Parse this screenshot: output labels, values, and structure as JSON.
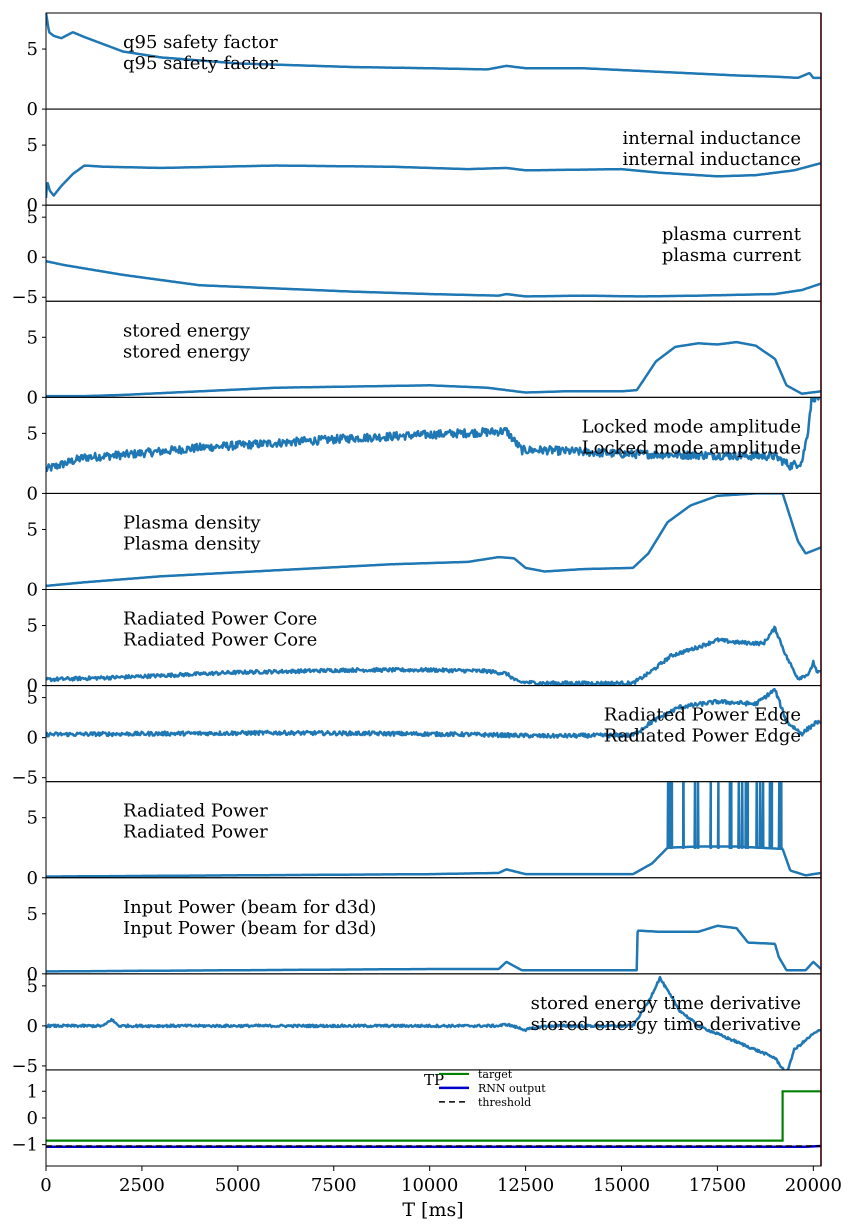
{
  "chart_data": {
    "type": "line",
    "xlabel": "T [ms]",
    "xlim": [
      0,
      20200
    ],
    "x_ticks": [
      0,
      2500,
      5000,
      7500,
      10000,
      12500,
      15000,
      17500,
      20000
    ],
    "x_tick_labels": [
      "0",
      "2500",
      "5000",
      "7500",
      "10000",
      "12500",
      "15000",
      "17500",
      "20000"
    ],
    "line_color": "#1f77b4",
    "end_marker_color": "#8b0000",
    "panels": [
      {
        "label": "q95 safety factor",
        "label_pos": "left",
        "ylim": [
          0,
          8
        ],
        "yticks": [
          0,
          5
        ],
        "ytick_labels": [
          "0",
          "5"
        ],
        "noise": 0,
        "points": [
          [
            0,
            8
          ],
          [
            80,
            6.4
          ],
          [
            200,
            6.1
          ],
          [
            400,
            5.9
          ],
          [
            700,
            6.4
          ],
          [
            1000,
            6.0
          ],
          [
            1500,
            5.4
          ],
          [
            2000,
            4.8
          ],
          [
            3000,
            4.3
          ],
          [
            5000,
            3.8
          ],
          [
            8000,
            3.5
          ],
          [
            10000,
            3.4
          ],
          [
            11500,
            3.3
          ],
          [
            12000,
            3.6
          ],
          [
            12500,
            3.4
          ],
          [
            14000,
            3.4
          ],
          [
            16000,
            3.1
          ],
          [
            18000,
            2.8
          ],
          [
            19000,
            2.7
          ],
          [
            19600,
            2.6
          ],
          [
            19900,
            3.0
          ],
          [
            20000,
            2.6
          ],
          [
            20200,
            2.6
          ]
        ]
      },
      {
        "label": "internal inductance",
        "label_pos": "right",
        "ylim": [
          0,
          8
        ],
        "yticks": [
          0,
          5
        ],
        "ytick_labels": [
          "0",
          "5"
        ],
        "noise": 0,
        "points": [
          [
            0,
            0.6
          ],
          [
            30,
            2.0
          ],
          [
            100,
            1.2
          ],
          [
            200,
            0.8
          ],
          [
            400,
            1.6
          ],
          [
            700,
            2.6
          ],
          [
            1000,
            3.3
          ],
          [
            1500,
            3.2
          ],
          [
            3000,
            3.1
          ],
          [
            6000,
            3.3
          ],
          [
            9000,
            3.2
          ],
          [
            11000,
            3.0
          ],
          [
            12000,
            3.1
          ],
          [
            12500,
            2.9
          ],
          [
            15000,
            3.0
          ],
          [
            16000,
            2.7
          ],
          [
            17500,
            2.4
          ],
          [
            18500,
            2.5
          ],
          [
            19500,
            2.9
          ],
          [
            20200,
            3.5
          ]
        ]
      },
      {
        "label": "plasma current",
        "label_pos": "right",
        "ylim": [
          -5.5,
          6.5
        ],
        "yticks": [
          -5,
          0,
          5
        ],
        "ytick_labels": [
          "−5",
          "0",
          "5"
        ],
        "noise": 0,
        "points": [
          [
            0,
            -0.5
          ],
          [
            500,
            -1.0
          ],
          [
            2000,
            -2.2
          ],
          [
            4000,
            -3.5
          ],
          [
            6000,
            -3.9
          ],
          [
            8000,
            -4.3
          ],
          [
            10000,
            -4.6
          ],
          [
            11800,
            -4.8
          ],
          [
            12000,
            -4.6
          ],
          [
            12500,
            -4.9
          ],
          [
            14000,
            -4.8
          ],
          [
            15500,
            -4.9
          ],
          [
            17000,
            -4.8
          ],
          [
            19000,
            -4.6
          ],
          [
            19700,
            -4.1
          ],
          [
            20200,
            -3.3
          ]
        ]
      },
      {
        "label": "stored energy",
        "label_pos": "left",
        "ylim": [
          0,
          8
        ],
        "yticks": [
          0,
          5
        ],
        "ytick_labels": [
          "0",
          "5"
        ],
        "noise": 0,
        "points": [
          [
            0,
            0.1
          ],
          [
            1000,
            0.1
          ],
          [
            2000,
            0.2
          ],
          [
            4000,
            0.5
          ],
          [
            6000,
            0.8
          ],
          [
            8000,
            0.9
          ],
          [
            10000,
            1.0
          ],
          [
            11500,
            0.8
          ],
          [
            12000,
            0.6
          ],
          [
            12500,
            0.4
          ],
          [
            13500,
            0.5
          ],
          [
            15000,
            0.5
          ],
          [
            15400,
            0.6
          ],
          [
            15900,
            3.0
          ],
          [
            16400,
            4.2
          ],
          [
            17000,
            4.5
          ],
          [
            17500,
            4.4
          ],
          [
            18000,
            4.6
          ],
          [
            18500,
            4.3
          ],
          [
            19000,
            3.2
          ],
          [
            19300,
            1.0
          ],
          [
            19700,
            0.3
          ],
          [
            20200,
            0.5
          ]
        ]
      },
      {
        "label": "Locked mode amplitude",
        "label_pos": "right",
        "ylim": [
          0,
          8
        ],
        "yticks": [
          0,
          5
        ],
        "ytick_labels": [
          "0",
          "5"
        ],
        "noise": 0.35,
        "points": [
          [
            0,
            2.0
          ],
          [
            500,
            2.5
          ],
          [
            1000,
            3.0
          ],
          [
            2000,
            3.2
          ],
          [
            4000,
            3.8
          ],
          [
            6000,
            4.2
          ],
          [
            8000,
            4.6
          ],
          [
            10000,
            4.9
          ],
          [
            11500,
            5.1
          ],
          [
            12000,
            5.2
          ],
          [
            12400,
            3.6
          ],
          [
            13000,
            3.6
          ],
          [
            15000,
            3.3
          ],
          [
            17000,
            3.2
          ],
          [
            19000,
            3.1
          ],
          [
            19400,
            2.3
          ],
          [
            19700,
            2.6
          ],
          [
            19850,
            5.0
          ],
          [
            19950,
            7.8
          ],
          [
            20000,
            8.0
          ]
        ]
      },
      {
        "label": "Plasma density",
        "label_pos": "left",
        "ylim": [
          0,
          8
        ],
        "yticks": [
          0,
          5
        ],
        "ytick_labels": [
          "0",
          "5"
        ],
        "noise": 0,
        "points": [
          [
            0,
            0.3
          ],
          [
            1000,
            0.6
          ],
          [
            3000,
            1.1
          ],
          [
            6000,
            1.6
          ],
          [
            9000,
            2.1
          ],
          [
            11000,
            2.3
          ],
          [
            11800,
            2.7
          ],
          [
            12200,
            2.6
          ],
          [
            12500,
            1.8
          ],
          [
            13000,
            1.5
          ],
          [
            14000,
            1.7
          ],
          [
            15300,
            1.8
          ],
          [
            15700,
            3.0
          ],
          [
            16200,
            5.6
          ],
          [
            16800,
            7.0
          ],
          [
            17500,
            7.8
          ],
          [
            18500,
            8.0
          ],
          [
            19200,
            8.0
          ],
          [
            19400,
            6.0
          ],
          [
            19600,
            4.0
          ],
          [
            19800,
            3.0
          ],
          [
            20200,
            3.5
          ]
        ]
      },
      {
        "label": "Radiated Power Core",
        "label_pos": "left",
        "ylim": [
          0,
          8
        ],
        "yticks": [
          0,
          5
        ],
        "ytick_labels": [
          "0",
          "5"
        ],
        "noise": 0.15,
        "points": [
          [
            0,
            0.5
          ],
          [
            2000,
            0.7
          ],
          [
            5000,
            1.1
          ],
          [
            8000,
            1.3
          ],
          [
            10000,
            1.3
          ],
          [
            11500,
            1.2
          ],
          [
            12000,
            1.0
          ],
          [
            12300,
            0.3
          ],
          [
            13000,
            0.2
          ],
          [
            15300,
            0.2
          ],
          [
            15700,
            1.0
          ],
          [
            16300,
            2.5
          ],
          [
            17000,
            3.2
          ],
          [
            17500,
            3.8
          ],
          [
            18000,
            3.6
          ],
          [
            18700,
            3.5
          ],
          [
            19000,
            4.8
          ],
          [
            19300,
            2.4
          ],
          [
            19600,
            0.6
          ],
          [
            19900,
            1.0
          ],
          [
            20000,
            2.0
          ],
          [
            20100,
            1.0
          ],
          [
            20200,
            1.2
          ]
        ]
      },
      {
        "label": "Radiated Power Edge",
        "label_pos": "right",
        "ylim": [
          -5.5,
          6.5
        ],
        "yticks": [
          -5,
          0,
          5
        ],
        "ytick_labels": [
          "−5",
          "0",
          "5"
        ],
        "noise": 0.25,
        "points": [
          [
            0,
            0.4
          ],
          [
            3000,
            0.5
          ],
          [
            6000,
            0.6
          ],
          [
            9000,
            0.5
          ],
          [
            11000,
            0.4
          ],
          [
            12000,
            0.3
          ],
          [
            13000,
            0.2
          ],
          [
            15300,
            0.3
          ],
          [
            15800,
            2.0
          ],
          [
            16500,
            3.8
          ],
          [
            17500,
            4.5
          ],
          [
            18500,
            4.2
          ],
          [
            19000,
            6.0
          ],
          [
            19300,
            2.0
          ],
          [
            19700,
            0.5
          ],
          [
            20100,
            2.0
          ],
          [
            20200,
            1.6
          ]
        ]
      },
      {
        "label": "Radiated Power",
        "label_pos": "left",
        "ylim": [
          0,
          8
        ],
        "yticks": [
          0,
          5
        ],
        "ytick_labels": [
          "0",
          "5"
        ],
        "noise": 0,
        "spikes": [
          [
            16200,
            19300,
            28,
            2.5,
            8.0
          ]
        ],
        "points": [
          [
            0,
            0.1
          ],
          [
            5000,
            0.2
          ],
          [
            10000,
            0.3
          ],
          [
            11800,
            0.4
          ],
          [
            12000,
            0.7
          ],
          [
            12500,
            0.3
          ],
          [
            15300,
            0.3
          ],
          [
            15800,
            1.2
          ],
          [
            16200,
            2.5
          ],
          [
            17000,
            2.6
          ],
          [
            18000,
            2.6
          ],
          [
            19200,
            2.4
          ],
          [
            19400,
            0.6
          ],
          [
            19800,
            0.2
          ],
          [
            20200,
            0.4
          ]
        ]
      },
      {
        "label": "Input Power (beam for d3d)",
        "label_pos": "left",
        "ylim": [
          0,
          8
        ],
        "yticks": [
          0,
          5
        ],
        "ytick_labels": [
          "0",
          "5"
        ],
        "noise": 0,
        "points": [
          [
            0,
            0.2
          ],
          [
            5000,
            0.3
          ],
          [
            10000,
            0.4
          ],
          [
            11800,
            0.4
          ],
          [
            12000,
            1.0
          ],
          [
            12400,
            0.3
          ],
          [
            15400,
            0.3
          ],
          [
            15420,
            3.6
          ],
          [
            16000,
            3.5
          ],
          [
            17000,
            3.5
          ],
          [
            17500,
            4.0
          ],
          [
            18000,
            3.8
          ],
          [
            18300,
            2.6
          ],
          [
            19000,
            2.5
          ],
          [
            19100,
            1.4
          ],
          [
            19300,
            0.3
          ],
          [
            19800,
            0.3
          ],
          [
            20000,
            1.0
          ],
          [
            20200,
            0.4
          ]
        ]
      },
      {
        "label": "stored energy time derivative",
        "label_pos": "right",
        "ylim": [
          -5.5,
          6.5
        ],
        "yticks": [
          -5,
          0,
          5
        ],
        "ytick_labels": [
          "−5",
          "0",
          "5"
        ],
        "noise": 0.15,
        "points": [
          [
            0,
            0
          ],
          [
            1500,
            0
          ],
          [
            1700,
            0.8
          ],
          [
            1900,
            0
          ],
          [
            5000,
            0
          ],
          [
            10000,
            0
          ],
          [
            11800,
            0
          ],
          [
            12000,
            0.2
          ],
          [
            12500,
            -0.5
          ],
          [
            13000,
            0
          ],
          [
            15300,
            0
          ],
          [
            15700,
            3.0
          ],
          [
            16000,
            6.0
          ],
          [
            16500,
            2.0
          ],
          [
            17000,
            0
          ],
          [
            17500,
            -1.0
          ],
          [
            18000,
            -2.0
          ],
          [
            18500,
            -3.0
          ],
          [
            19000,
            -4.0
          ],
          [
            19300,
            -6.0
          ],
          [
            19500,
            -3.0
          ],
          [
            20000,
            -1.0
          ],
          [
            20200,
            -0.5
          ]
        ]
      },
      {
        "label": "",
        "label_pos": "none",
        "ylim": [
          -1.8,
          1.8
        ],
        "yticks": [
          -1,
          0,
          1
        ],
        "ytick_labels": [
          "−1",
          "0",
          "1"
        ],
        "tp_label": "TP",
        "legend_position": "upper-center",
        "series": [
          {
            "name": "target",
            "color": "#008000",
            "dash": "",
            "width": 2.2,
            "points": [
              [
                0,
                -0.85
              ],
              [
                19200,
                -0.85
              ],
              [
                19200,
                1.0
              ],
              [
                20200,
                1.0
              ]
            ]
          },
          {
            "name": "RNN output",
            "color": "#0000cc",
            "dash": "",
            "width": 2.5,
            "points": [
              [
                0,
                -1.08
              ],
              [
                19800,
                -1.08
              ],
              [
                20200,
                -1.05
              ]
            ]
          },
          {
            "name": "threshold",
            "color": "#000000",
            "dash": "6,4",
            "width": 1.5,
            "points": [
              [
                0,
                -1.05
              ],
              [
                20200,
                -1.05
              ]
            ]
          }
        ]
      }
    ]
  }
}
